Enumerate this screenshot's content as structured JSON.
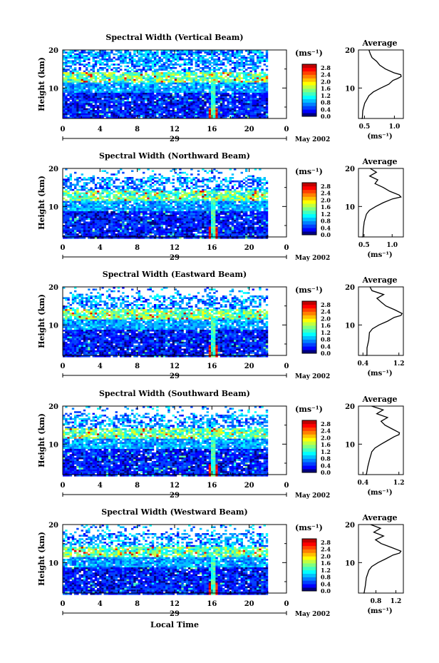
{
  "chart_data": {
    "type": "heatmap",
    "figure_xlabel": "Local Time",
    "panels": [
      {
        "title": "Spectral Width (Vertical Beam)",
        "avg_ticks": [
          "0.5",
          "1.0"
        ],
        "avg_xlim": [
          0.4,
          1.15
        ],
        "avg_profile": [
          [
            0,
            0.45
          ],
          [
            2,
            0.46
          ],
          [
            4,
            0.48
          ],
          [
            6,
            0.5
          ],
          [
            8,
            0.58
          ],
          [
            9,
            0.65
          ],
          [
            10,
            0.78
          ],
          [
            11,
            0.9
          ],
          [
            12,
            0.98
          ],
          [
            12.5,
            1.05
          ],
          [
            13,
            1.12
          ],
          [
            13.5,
            1.1
          ],
          [
            14,
            1.0
          ],
          [
            15,
            0.85
          ],
          [
            16,
            0.75
          ],
          [
            17,
            0.7
          ],
          [
            18,
            0.62
          ],
          [
            19,
            0.6
          ],
          [
            20,
            0.58
          ]
        ]
      },
      {
        "title": "Spectral Width (Northward Beam)",
        "avg_ticks": [
          "0.5",
          "1.0"
        ],
        "avg_xlim": [
          0.4,
          1.2
        ],
        "avg_profile": [
          [
            0,
            0.45
          ],
          [
            2,
            0.47
          ],
          [
            4,
            0.48
          ],
          [
            6,
            0.5
          ],
          [
            8,
            0.55
          ],
          [
            9,
            0.6
          ],
          [
            10,
            0.7
          ],
          [
            11,
            0.85
          ],
          [
            12,
            1.0
          ],
          [
            12.5,
            1.15
          ],
          [
            13,
            1.12
          ],
          [
            14,
            0.95
          ],
          [
            15,
            0.85
          ],
          [
            16,
            0.7
          ],
          [
            17,
            0.75
          ],
          [
            18,
            0.6
          ],
          [
            19,
            0.72
          ],
          [
            20,
            0.6
          ]
        ]
      },
      {
        "title": "Spectral Width (Eastward Beam)",
        "avg_ticks": [
          "0.4",
          "1.2"
        ],
        "avg_xlim": [
          0.3,
          1.3
        ],
        "avg_profile": [
          [
            0,
            0.45
          ],
          [
            2,
            0.48
          ],
          [
            4,
            0.5
          ],
          [
            6,
            0.52
          ],
          [
            8,
            0.55
          ],
          [
            9,
            0.6
          ],
          [
            10,
            0.75
          ],
          [
            11,
            0.95
          ],
          [
            12,
            1.1
          ],
          [
            12.5,
            1.25
          ],
          [
            13,
            1.28
          ],
          [
            14,
            1.1
          ],
          [
            15,
            0.9
          ],
          [
            16,
            0.8
          ],
          [
            17,
            0.7
          ],
          [
            18,
            0.85
          ],
          [
            19,
            0.6
          ],
          [
            20,
            0.55
          ]
        ]
      },
      {
        "title": "Spectral Width (Southward Beam)",
        "avg_ticks": [
          "0.4",
          "1.2"
        ],
        "avg_xlim": [
          0.3,
          1.3
        ],
        "avg_profile": [
          [
            0,
            0.45
          ],
          [
            2,
            0.48
          ],
          [
            4,
            0.5
          ],
          [
            6,
            0.55
          ],
          [
            8,
            0.6
          ],
          [
            9,
            0.68
          ],
          [
            10,
            0.8
          ],
          [
            11,
            0.95
          ],
          [
            12,
            1.1
          ],
          [
            12.5,
            1.2
          ],
          [
            13,
            1.22
          ],
          [
            14,
            1.05
          ],
          [
            15,
            0.9
          ],
          [
            16,
            0.8
          ],
          [
            17,
            0.95
          ],
          [
            18,
            0.7
          ],
          [
            19,
            0.85
          ],
          [
            20,
            0.6
          ]
        ]
      },
      {
        "title": "Spectral Width (Westward Beam)",
        "avg_ticks": [
          "0.8",
          "1.2"
        ],
        "avg_xlim": [
          0.45,
          1.35
        ],
        "avg_profile": [
          [
            0,
            0.55
          ],
          [
            2,
            0.56
          ],
          [
            4,
            0.58
          ],
          [
            6,
            0.6
          ],
          [
            8,
            0.65
          ],
          [
            9,
            0.72
          ],
          [
            10,
            0.85
          ],
          [
            11,
            1.0
          ],
          [
            12,
            1.15
          ],
          [
            12.5,
            1.28
          ],
          [
            13,
            1.3
          ],
          [
            14,
            1.1
          ],
          [
            15,
            0.9
          ],
          [
            16,
            0.8
          ],
          [
            17,
            0.95
          ],
          [
            18,
            0.75
          ],
          [
            19,
            0.9
          ],
          [
            20,
            0.7
          ]
        ]
      }
    ],
    "x_ticks": [
      "0",
      "4",
      "8",
      "12",
      "16",
      "20",
      "0"
    ],
    "xlim": [
      0,
      24
    ],
    "day_label": "29",
    "month_label": "May 2002",
    "ylabel": "Height (km)",
    "y_ticks": [
      "20",
      "10"
    ],
    "ylim": [
      2,
      20
    ],
    "colorbar_unit": "(ms⁻¹)",
    "colorbar_ticks": [
      "2.8",
      "2.4",
      "2.0",
      "1.6",
      "1.2",
      "0.8",
      "0.4",
      "0.0"
    ],
    "colorbar_range": [
      0,
      3.0
    ],
    "avg_title": "Average",
    "avg_unit": "(ms⁻¹)",
    "avg_y_ticks": [
      "20",
      "10"
    ],
    "colormap": [
      "#000080",
      "#0000ff",
      "#0040ff",
      "#0080ff",
      "#00c0ff",
      "#00ffff",
      "#40ffc0",
      "#80ff80",
      "#c0ff40",
      "#ffff00",
      "#ffc000",
      "#ff8000",
      "#ff4000",
      "#ff0000",
      "#c00000"
    ]
  }
}
